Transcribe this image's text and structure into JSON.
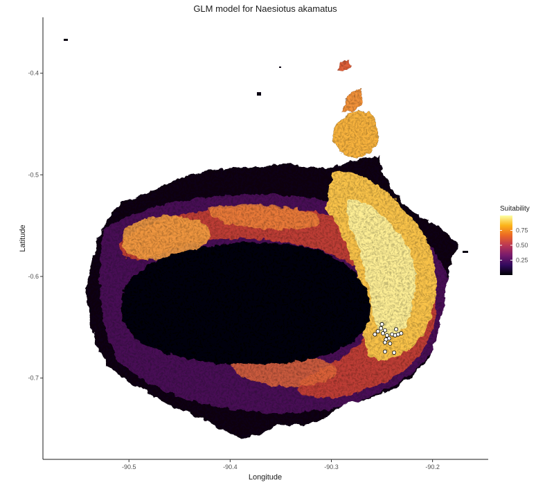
{
  "chart_data": {
    "type": "heatmap",
    "title": "GLM model for Naesiotus akamatus",
    "xlabel": "Longitude",
    "ylabel": "Latitude",
    "xlim": [
      -90.585,
      -90.145
    ],
    "ylim": [
      -0.78,
      -0.345
    ],
    "x_ticks": [
      -90.5,
      -90.4,
      -90.3,
      -90.2
    ],
    "x_tick_labels": [
      "-90.5",
      "-90.4",
      "-90.3",
      "-90.2"
    ],
    "y_ticks": [
      -0.4,
      -0.5,
      -0.6,
      -0.7
    ],
    "y_tick_labels": [
      "-0.4",
      "-0.5",
      "-0.6",
      "-0.7"
    ],
    "grid": false,
    "legend": {
      "title": "Suitability",
      "placement": "right",
      "ticks": [
        0.25,
        0.5,
        0.75
      ],
      "tick_labels": [
        "0.25",
        "0.50",
        "0.75"
      ],
      "range": [
        0.0,
        1.0
      ],
      "colormap": "inferno",
      "colors": [
        "#000004",
        "#320a5e",
        "#781b6c",
        "#bb3754",
        "#ec6824",
        "#fbb41a",
        "#fcffa4"
      ]
    },
    "occurrences": [
      {
        "x": -90.257,
        "y": -0.657
      },
      {
        "x": -90.254,
        "y": -0.654
      },
      {
        "x": -90.251,
        "y": -0.651
      },
      {
        "x": -90.249,
        "y": -0.656
      },
      {
        "x": -90.247,
        "y": -0.653
      },
      {
        "x": -90.245,
        "y": -0.658
      },
      {
        "x": -90.243,
        "y": -0.661
      },
      {
        "x": -90.246,
        "y": -0.662
      },
      {
        "x": -90.24,
        "y": -0.657
      },
      {
        "x": -90.237,
        "y": -0.658
      },
      {
        "x": -90.234,
        "y": -0.657
      },
      {
        "x": -90.231,
        "y": -0.656
      },
      {
        "x": -90.236,
        "y": -0.652
      },
      {
        "x": -90.25,
        "y": -0.647
      },
      {
        "x": -90.247,
        "y": -0.665
      },
      {
        "x": -90.242,
        "y": -0.666
      },
      {
        "x": -90.247,
        "y": -0.674
      },
      {
        "x": -90.238,
        "y": -0.675
      }
    ]
  }
}
